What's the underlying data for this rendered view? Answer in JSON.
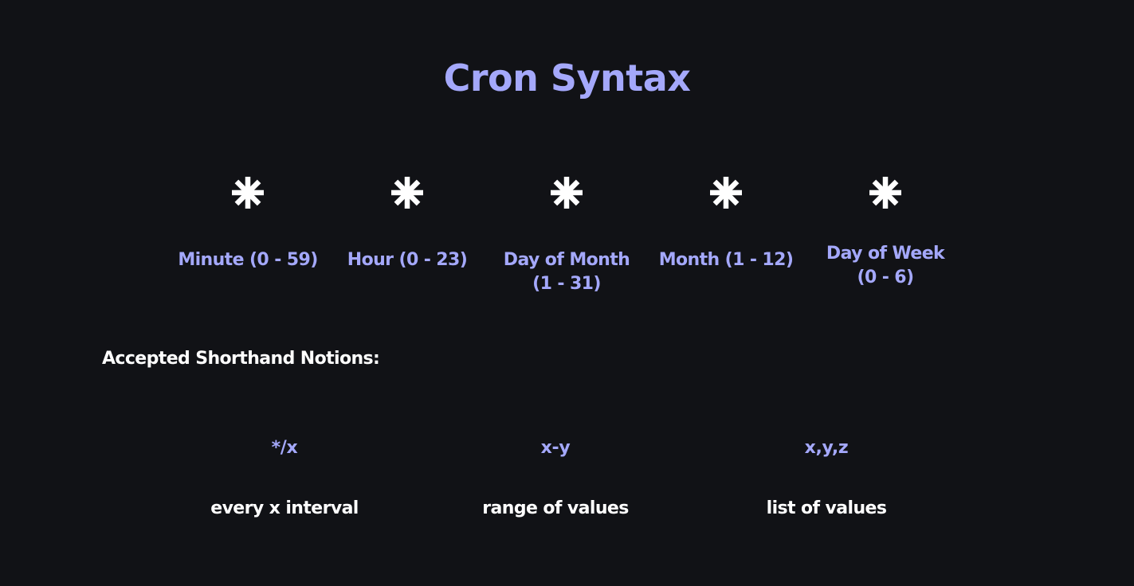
{
  "title": "Cron Syntax",
  "fields": [
    {
      "symbol": "*",
      "label_line1": "Minute (0 - 59)",
      "label_line2": ""
    },
    {
      "symbol": "*",
      "label_line1": "Hour (0 - 23)",
      "label_line2": ""
    },
    {
      "symbol": "*",
      "label_line1": "Day of Month",
      "label_line2": "(1 - 31)"
    },
    {
      "symbol": "*",
      "label_line1": "Month (1 - 12)",
      "label_line2": ""
    },
    {
      "symbol": "*",
      "label_line1": "Day of Week",
      "label_line2": "(0 - 6)"
    }
  ],
  "shorthand": {
    "heading": "Accepted Shorthand Notions:",
    "items": [
      {
        "syntax": "*/x",
        "meaning": "every x interval"
      },
      {
        "syntax": "x-y",
        "meaning": "range of values"
      },
      {
        "syntax": "x,y,z",
        "meaning": "list of values"
      }
    ]
  },
  "colors": {
    "background": "#111216",
    "accent": "#a4a8fb",
    "text": "#ffffff"
  },
  "icons": {
    "field_symbol": "asterisk-icon"
  }
}
